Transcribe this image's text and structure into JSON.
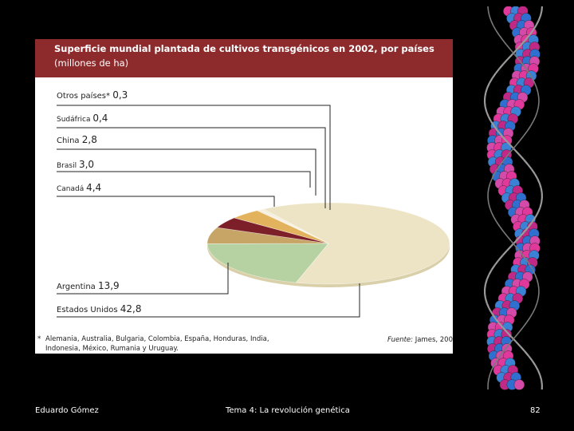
{
  "chart_data": {
    "type": "pie",
    "title": "Superficie mundial plantada de cultivos transgénicos en 2002, por países",
    "subtitle": "(millones de ha)",
    "unit": "millones de ha",
    "slices": [
      {
        "label": "Estados Unidos",
        "value": 42.8,
        "value_text": "42,8",
        "color": "#ede4c6"
      },
      {
        "label": "Argentina",
        "value": 13.9,
        "value_text": "13,9",
        "color": "#b7d2a2"
      },
      {
        "label": "Canadá",
        "value": 4.4,
        "value_text": "4,4",
        "color": "#c7a566"
      },
      {
        "label": "Brasil",
        "value": 3.0,
        "value_text": "3,0",
        "color": "#7d1f28"
      },
      {
        "label": "China",
        "value": 2.8,
        "value_text": "2,8",
        "color": "#e3b25c"
      },
      {
        "label": "Sudáfrica",
        "value": 0.4,
        "value_text": "0,4",
        "color": "#ffffff"
      },
      {
        "label": "Otros países*",
        "value": 0.3,
        "value_text": "0,3",
        "color": "#ffffff"
      }
    ],
    "footnote_marker": "*",
    "footnote": "Alemania, Australia, Bulgaria, Colombia, España, Honduras, India, Indonesia, México, Rumania y Uruguay.",
    "source_label": "Fuente:",
    "source": "James, 200",
    "colors": {
      "title_band": "#8c2a2c",
      "leader_line": "#222222"
    }
  },
  "footer": {
    "author": "Eduardo Gómez",
    "topic": "Tema 4: La revolución genética",
    "page": "82"
  }
}
